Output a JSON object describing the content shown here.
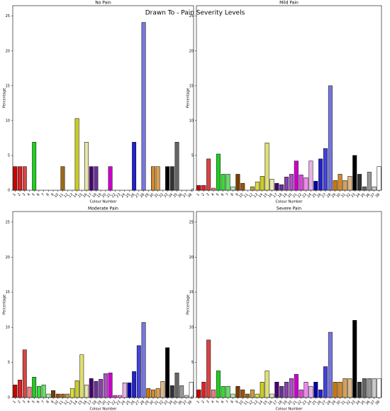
{
  "title": "Drawn To - Pain Severity Levels",
  "chart_data": [
    {
      "type": "bar",
      "title": "No Pain",
      "xlabel": "Colour Number",
      "ylabel": "Percentage",
      "categories": [
        "1",
        "2",
        "3",
        "4",
        "5",
        "6",
        "7",
        "8",
        "9",
        "10",
        "11",
        "12",
        "13",
        "14",
        "15",
        "16",
        "17",
        "18",
        "19",
        "20",
        "21",
        "22",
        "23",
        "24",
        "25",
        "26",
        "27",
        "28",
        "29",
        "30",
        "31",
        "32",
        "33",
        "34",
        "35",
        "36",
        "37",
        "38"
      ],
      "values": [
        3.4,
        3.4,
        3.4,
        0,
        6.9,
        0,
        0,
        0,
        0,
        0,
        3.4,
        0,
        0,
        10.3,
        0,
        6.9,
        3.4,
        3.4,
        0,
        0,
        3.4,
        0,
        0,
        0,
        0,
        6.9,
        0,
        24.1,
        0,
        3.4,
        3.4,
        0,
        3.4,
        3.4,
        6.9,
        0,
        0,
        0
      ],
      "colors": [
        "#cc0000",
        "#dd2222",
        "#d94444",
        "#f08080",
        "#22cc22",
        "#33dd33",
        "#66dd66",
        "#aaeeaa",
        "#7a3e00",
        "#a0520a",
        "#9c6a14",
        "#c8a040",
        "#dddd44",
        "#cccc22",
        "#e0e070",
        "#e8e8b0",
        "#4a0070",
        "#663399",
        "#8844aa",
        "#b050c8",
        "#cc00cc",
        "#dd44dd",
        "#ee88ee",
        "#e8b0e8",
        "#0000aa",
        "#2222cc",
        "#4444dd",
        "#7777dd",
        "#cc7700",
        "#d4882a",
        "#d9a050",
        "#e0b888",
        "#000000",
        "#333333",
        "#666666",
        "#999999",
        "#cccccc",
        "#ffffff"
      ],
      "ylim": [
        0,
        26.5
      ],
      "yticks": [
        0,
        5,
        10,
        15,
        20,
        25
      ]
    },
    {
      "type": "bar",
      "title": "Mild Pain",
      "xlabel": "Colour Number",
      "ylabel": "Percentage",
      "categories": [
        "1",
        "2",
        "3",
        "4",
        "5",
        "6",
        "7",
        "8",
        "9",
        "10",
        "11",
        "12",
        "13",
        "14",
        "15",
        "16",
        "17",
        "18",
        "19",
        "20",
        "21",
        "22",
        "23",
        "24",
        "25",
        "26",
        "27",
        "28",
        "29",
        "30",
        "31",
        "32",
        "33",
        "34",
        "35",
        "36",
        "37",
        "38"
      ],
      "values": [
        0.7,
        0.7,
        4.5,
        0.3,
        5.2,
        2.3,
        2.3,
        0.5,
        2.3,
        1.0,
        0,
        0.5,
        1.2,
        2.0,
        6.8,
        1.6,
        1.0,
        0.8,
        1.9,
        2.3,
        4.2,
        2.2,
        1.8,
        4.2,
        1.3,
        4.5,
        6.0,
        15.0,
        1.4,
        2.3,
        1.4,
        2.0,
        5.0,
        2.3,
        0.5,
        2.6,
        0.5,
        3.4
      ],
      "colors": [
        "#cc0000",
        "#dd2222",
        "#d94444",
        "#f08080",
        "#22cc22",
        "#33dd33",
        "#66dd66",
        "#aaeeaa",
        "#7a3e00",
        "#a0520a",
        "#9c6a14",
        "#c8a040",
        "#dddd44",
        "#cccc22",
        "#e0e070",
        "#e8e8b0",
        "#4a0070",
        "#663399",
        "#8844aa",
        "#b050c8",
        "#cc00cc",
        "#dd44dd",
        "#ee88ee",
        "#e8b0e8",
        "#0000aa",
        "#2222cc",
        "#4444dd",
        "#7777dd",
        "#cc7700",
        "#d4882a",
        "#d9a050",
        "#e0b888",
        "#000000",
        "#333333",
        "#666666",
        "#999999",
        "#cccccc",
        "#ffffff"
      ],
      "ylim": [
        0,
        26.5
      ],
      "yticks": [
        0,
        5,
        10,
        15,
        20,
        25
      ]
    },
    {
      "type": "bar",
      "title": "Moderate Pain",
      "xlabel": "Colour Number",
      "ylabel": "Percentage",
      "categories": [
        "1",
        "2",
        "3",
        "4",
        "5",
        "6",
        "7",
        "8",
        "9",
        "10",
        "11",
        "12",
        "13",
        "14",
        "15",
        "16",
        "17",
        "18",
        "19",
        "20",
        "21",
        "22",
        "23",
        "24",
        "25",
        "26",
        "27",
        "28",
        "29",
        "30",
        "31",
        "32",
        "33",
        "34",
        "35",
        "36",
        "37",
        "38"
      ],
      "values": [
        1.8,
        2.5,
        6.8,
        1.5,
        2.9,
        1.6,
        1.8,
        0.5,
        1.0,
        0.5,
        0.5,
        0.5,
        1.3,
        2.4,
        6.1,
        1.8,
        2.7,
        2.3,
        2.6,
        3.4,
        3.5,
        0.3,
        0.3,
        2.1,
        2.1,
        3.7,
        7.4,
        10.7,
        1.3,
        1.1,
        1.3,
        2.3,
        7.1,
        1.7,
        3.5,
        1.7,
        0.3,
        2.2
      ],
      "colors": [
        "#cc0000",
        "#dd2222",
        "#d94444",
        "#f08080",
        "#22cc22",
        "#33dd33",
        "#66dd66",
        "#aaeeaa",
        "#7a3e00",
        "#a0520a",
        "#9c6a14",
        "#c8a040",
        "#dddd44",
        "#cccc22",
        "#e0e070",
        "#e8e8b0",
        "#4a0070",
        "#663399",
        "#8844aa",
        "#b050c8",
        "#cc00cc",
        "#dd44dd",
        "#ee88ee",
        "#e8b0e8",
        "#0000aa",
        "#2222cc",
        "#4444dd",
        "#7777dd",
        "#cc7700",
        "#d4882a",
        "#d9a050",
        "#e0b888",
        "#000000",
        "#333333",
        "#666666",
        "#999999",
        "#cccccc",
        "#ffffff"
      ],
      "ylim": [
        0,
        26.5
      ],
      "yticks": [
        0,
        5,
        10,
        15,
        20,
        25
      ]
    },
    {
      "type": "bar",
      "title": "Severe Pain",
      "xlabel": "Colour Number",
      "ylabel": "Percentage",
      "categories": [
        "1",
        "2",
        "3",
        "4",
        "5",
        "6",
        "7",
        "8",
        "9",
        "10",
        "11",
        "12",
        "13",
        "14",
        "15",
        "16",
        "17",
        "18",
        "19",
        "20",
        "21",
        "22",
        "23",
        "24",
        "25",
        "26",
        "27",
        "28",
        "29",
        "30",
        "31",
        "32",
        "33",
        "34",
        "35",
        "36",
        "37",
        "38"
      ],
      "values": [
        1.1,
        2.2,
        8.2,
        1.1,
        3.8,
        1.6,
        1.6,
        0.5,
        1.6,
        1.1,
        0.5,
        1.1,
        0.5,
        2.2,
        3.8,
        0.5,
        2.2,
        1.6,
        2.2,
        2.7,
        3.3,
        1.1,
        2.2,
        1.6,
        2.2,
        1.1,
        4.4,
        9.3,
        2.2,
        2.2,
        2.7,
        2.7,
        11.0,
        2.2,
        2.7,
        2.7,
        2.7,
        2.7
      ],
      "colors": [
        "#cc0000",
        "#dd2222",
        "#d94444",
        "#f08080",
        "#22cc22",
        "#33dd33",
        "#66dd66",
        "#aaeeaa",
        "#7a3e00",
        "#a0520a",
        "#9c6a14",
        "#c8a040",
        "#dddd44",
        "#cccc22",
        "#e0e070",
        "#e8e8b0",
        "#4a0070",
        "#663399",
        "#8844aa",
        "#b050c8",
        "#cc00cc",
        "#dd44dd",
        "#ee88ee",
        "#e8b0e8",
        "#0000aa",
        "#2222cc",
        "#4444dd",
        "#7777dd",
        "#cc7700",
        "#d4882a",
        "#d9a050",
        "#e0b888",
        "#000000",
        "#333333",
        "#666666",
        "#999999",
        "#cccccc",
        "#ffffff"
      ],
      "ylim": [
        0,
        26.5
      ],
      "yticks": [
        0,
        5,
        10,
        15,
        20,
        25
      ]
    }
  ]
}
